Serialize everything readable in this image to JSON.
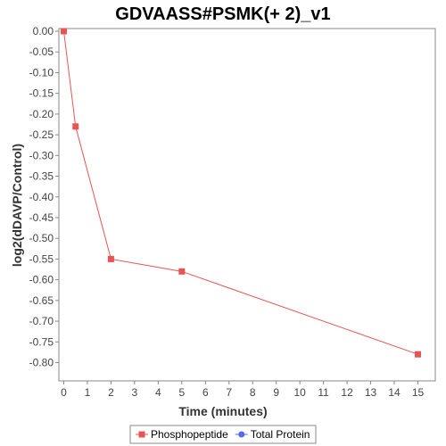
{
  "chart_data": {
    "type": "line",
    "title": "GDVAASS#PSMK(+ 2)_v1",
    "xlabel": "Time (minutes)",
    "ylabel": "log2(dDAVP/Control)",
    "xlim": [
      0,
      15.5
    ],
    "ylim": [
      -0.82,
      0.0
    ],
    "x_ticks": [
      0,
      1,
      2,
      3,
      4,
      5,
      6,
      7,
      8,
      9,
      10,
      11,
      12,
      13,
      14,
      15
    ],
    "y_ticks": [
      0.0,
      -0.05,
      -0.1,
      -0.15,
      -0.2,
      -0.25,
      -0.3,
      -0.35,
      -0.4,
      -0.45,
      -0.5,
      -0.55,
      -0.6,
      -0.65,
      -0.7,
      -0.75,
      -0.8
    ],
    "y_tick_labels": [
      "0.00",
      "-0.05",
      "-0.10",
      "-0.15",
      "-0.20",
      "-0.25",
      "-0.30",
      "-0.35",
      "-0.40",
      "-0.45",
      "-0.50",
      "-0.55",
      "-0.60",
      "-0.65",
      "-0.70",
      "-0.75",
      "-0.80"
    ],
    "grid": false,
    "legend_position": "bottom",
    "series": [
      {
        "name": "Phosphopeptide",
        "color": "#e85454",
        "marker": "square",
        "x": [
          0,
          0.5,
          2,
          5,
          15
        ],
        "y": [
          0.0,
          -0.23,
          -0.55,
          -0.58,
          -0.78
        ]
      },
      {
        "name": "Total Protein",
        "color": "#5468e8",
        "marker": "circle",
        "x": [],
        "y": []
      }
    ]
  }
}
